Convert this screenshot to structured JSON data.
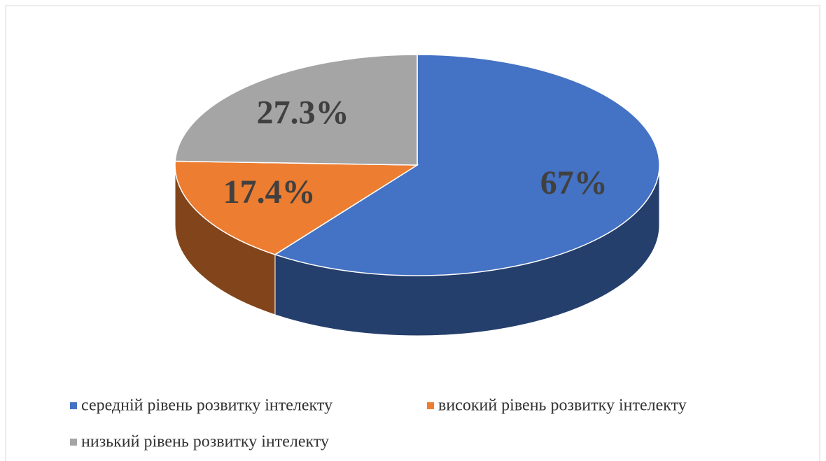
{
  "chart_data": {
    "type": "pie3d",
    "categories": [
      "середній рівень розвитку інтелекту",
      "високий рівень розвитку інтелекту",
      "низький рівень розвитку інтелекту"
    ],
    "values": [
      67,
      17.4,
      27.3
    ],
    "value_labels": [
      "67%",
      "17.4%",
      "27.3%"
    ],
    "colors": [
      "#4472c4",
      "#ed7d31",
      "#a5a5a5"
    ],
    "legend": "bottom"
  }
}
